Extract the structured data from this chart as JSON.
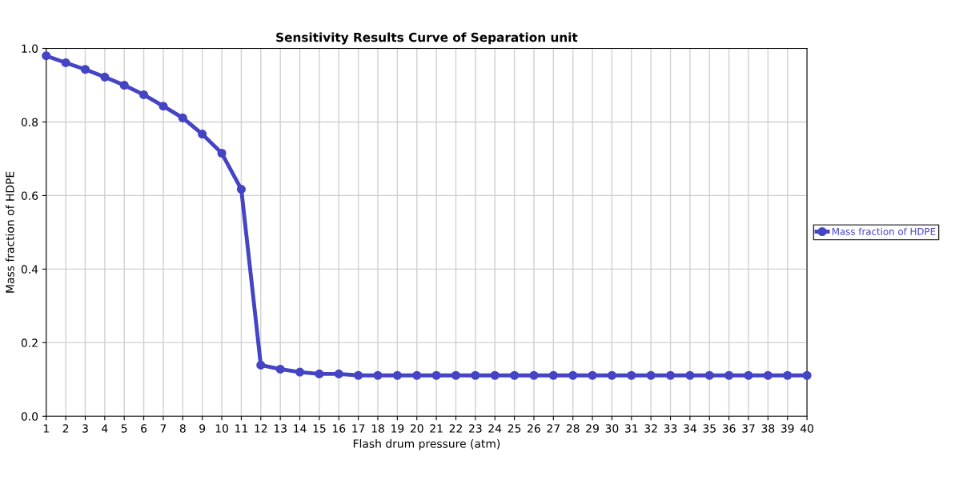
{
  "chart_data": {
    "type": "line",
    "title": "Sensitivity Results Curve of Separation unit",
    "xlabel": "Flash drum pressure (atm)",
    "ylabel": "Mass fraction of HDPE",
    "x": [
      1,
      2,
      3,
      4,
      5,
      6,
      7,
      8,
      9,
      10,
      11,
      12,
      13,
      14,
      15,
      16,
      17,
      18,
      19,
      20,
      21,
      22,
      23,
      24,
      25,
      26,
      27,
      28,
      29,
      30,
      31,
      32,
      33,
      34,
      35,
      36,
      37,
      38,
      39,
      40
    ],
    "series": [
      {
        "name": "Mass fraction of HDPE",
        "color": "#4444c4",
        "values": [
          0.98,
          0.961,
          0.943,
          0.922,
          0.9,
          0.874,
          0.843,
          0.811,
          0.767,
          0.715,
          0.617,
          0.139,
          0.128,
          0.12,
          0.115,
          0.115,
          0.111,
          0.111,
          0.111,
          0.111,
          0.111,
          0.111,
          0.111,
          0.111,
          0.111,
          0.111,
          0.111,
          0.111,
          0.111,
          0.111,
          0.111,
          0.111,
          0.111,
          0.111,
          0.111,
          0.111,
          0.111,
          0.111,
          0.111,
          0.111
        ]
      }
    ],
    "xlim": [
      1,
      40
    ],
    "xticks": [
      1,
      2,
      3,
      4,
      5,
      6,
      7,
      8,
      9,
      10,
      11,
      12,
      13,
      14,
      15,
      16,
      17,
      18,
      19,
      20,
      21,
      22,
      23,
      24,
      25,
      26,
      27,
      28,
      29,
      30,
      31,
      32,
      33,
      34,
      35,
      36,
      37,
      38,
      39,
      40
    ],
    "ylim": [
      0,
      1.0
    ],
    "yticks": [
      {
        "value": 0,
        "label": "0.0"
      },
      0.2,
      0.4,
      0.6,
      0.8,
      {
        "value": 1.0,
        "label": "1.0"
      }
    ],
    "grid": true,
    "legend": "right",
    "marker": "circle",
    "line_style": "solid"
  }
}
